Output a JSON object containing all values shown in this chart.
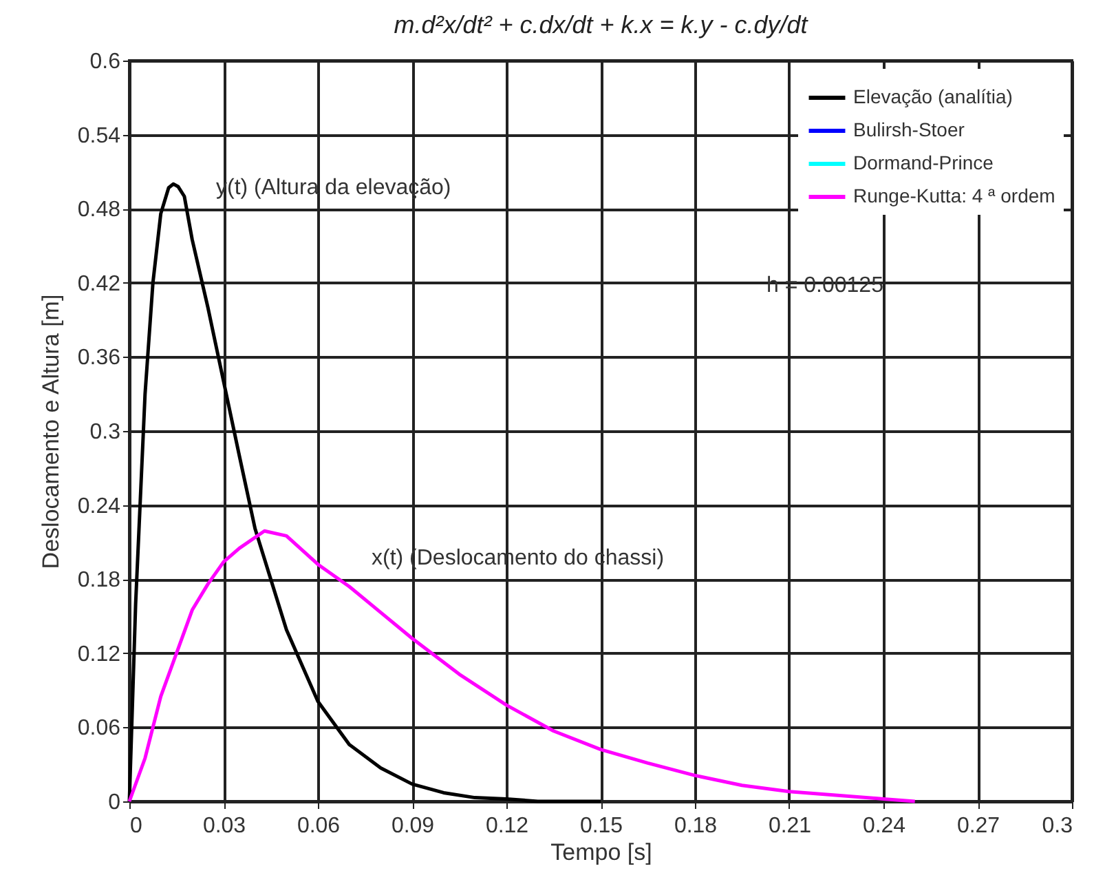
{
  "chart_data": {
    "type": "line",
    "title": "m.d²x/dt² + c.dx/dt + k.x = k.y - c.dy/dt",
    "xlabel": "Tempo [s]",
    "ylabel": "Deslocamento e Altura [m]",
    "xlim": [
      0,
      0.3
    ],
    "xticks": [
      0,
      0.03,
      0.06,
      0.09,
      0.12,
      0.15,
      0.18,
      0.21,
      0.24,
      0.27,
      0.3
    ],
    "ylim": [
      0,
      0.6
    ],
    "yticks": [
      0,
      0.06,
      0.12,
      0.18,
      0.24,
      0.3,
      0.36,
      0.42,
      0.48,
      0.54,
      0.6
    ],
    "grid": true,
    "legend": "top right",
    "line_style": "solid",
    "series": [
      {
        "name": "Elevação (analítia)",
        "color": "#000000",
        "x": [
          0,
          0.002,
          0.005,
          0.0075,
          0.01,
          0.0125,
          0.014,
          0.0155,
          0.0175,
          0.02,
          0.025,
          0.03,
          0.035,
          0.04,
          0.045,
          0.05,
          0.06,
          0.07,
          0.08,
          0.09,
          0.1,
          0.11,
          0.12,
          0.13,
          0.15
        ],
        "values": [
          0,
          0.16,
          0.33,
          0.42,
          0.476,
          0.497,
          0.5,
          0.498,
          0.49,
          0.455,
          0.4,
          0.34,
          0.28,
          0.221,
          0.18,
          0.139,
          0.081,
          0.046,
          0.027,
          0.014,
          0.007,
          0.003,
          0.002,
          0,
          0
        ]
      },
      {
        "name": "Bulirsh-Stoer",
        "color": "#0000ff",
        "values": [
          null
        ]
      },
      {
        "name": "Dormand-Prince",
        "color": "#00ffff",
        "values": [
          null
        ]
      },
      {
        "name": "Runge-Kutta: 4 ª ordem",
        "color": "#ff00ff",
        "x": [
          0,
          0.005,
          0.01,
          0.015,
          0.02,
          0.025,
          0.03,
          0.035,
          0.043,
          0.05,
          0.06,
          0.07,
          0.08,
          0.09,
          0.105,
          0.12,
          0.135,
          0.15,
          0.165,
          0.18,
          0.195,
          0.21,
          0.24,
          0.25
        ],
        "values": [
          0,
          0.035,
          0.085,
          0.12,
          0.155,
          0.176,
          0.194,
          0.205,
          0.219,
          0.215,
          0.192,
          0.174,
          0.153,
          0.132,
          0.103,
          0.078,
          0.057,
          0.042,
          0.031,
          0.021,
          0.013,
          0.008,
          0.002,
          0
        ]
      }
    ],
    "annotations": [
      "y(t) (Altura da elevação)",
      "x(t) (Deslocamento do chassi)",
      "h = 0.00125"
    ]
  }
}
